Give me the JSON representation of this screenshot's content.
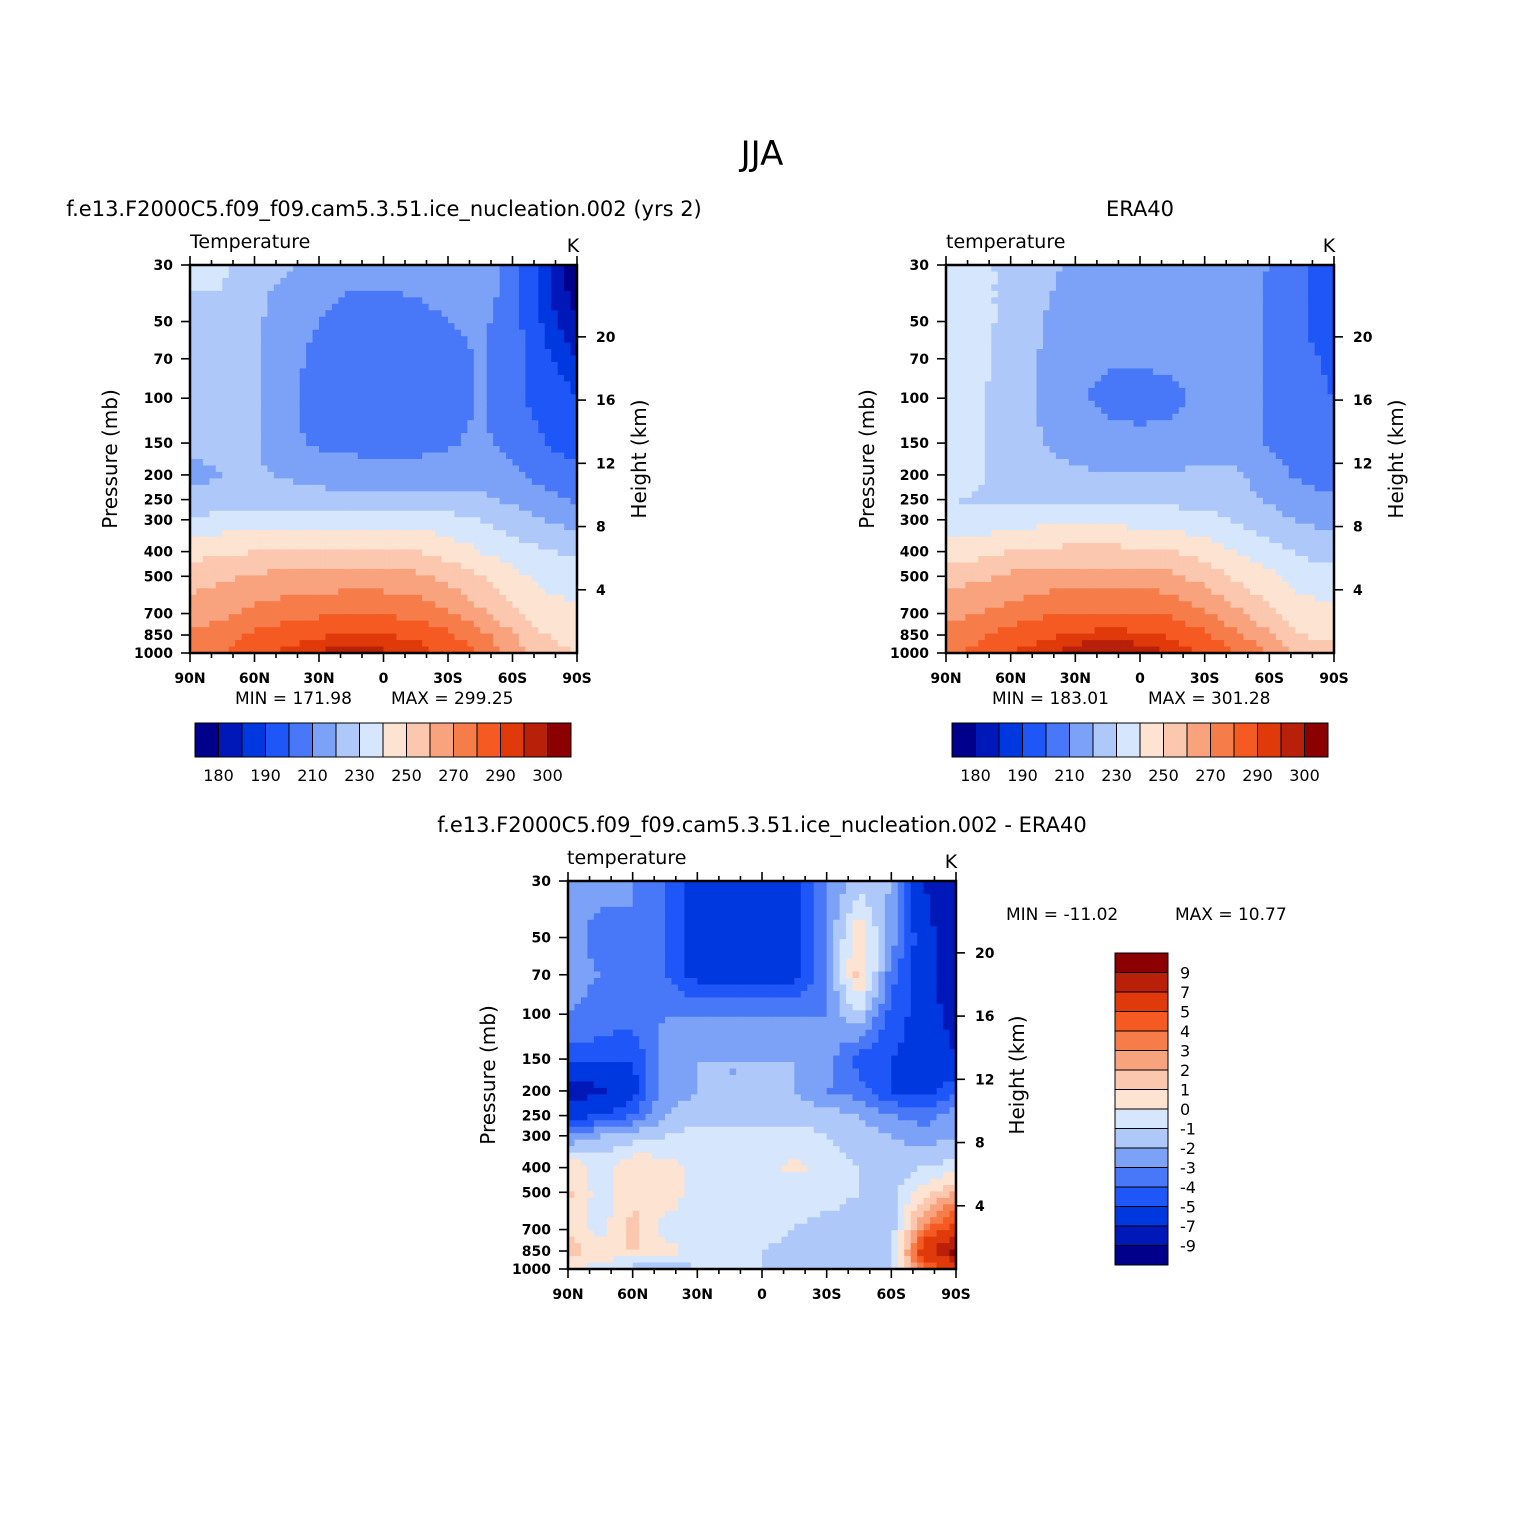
{
  "figure": {
    "title": "JJA"
  },
  "chart_data": [
    {
      "type": "heatmap",
      "title": "f.e13.F2000C5.f09_f09.cam5.3.51.ice_nucleation.002 (yrs 2)",
      "variable": "Temperature",
      "units": "K",
      "ylabel": "Pressure (mb)",
      "ylabel_right": "Height (km)",
      "x_ticks": [
        "90N",
        "60N",
        "30N",
        "0",
        "30S",
        "60S",
        "90S"
      ],
      "y_ticks": [
        30,
        50,
        70,
        100,
        150,
        200,
        250,
        300,
        400,
        500,
        700,
        850,
        1000
      ],
      "height_ticks": [
        20,
        16,
        12,
        8,
        4
      ],
      "min_label": "MIN =  171.98",
      "max_label": "MAX =  299.25",
      "levels": [
        180,
        185,
        190,
        200,
        210,
        220,
        230,
        240,
        250,
        260,
        270,
        280,
        290,
        295,
        300
      ],
      "colorbar_labels": [
        "180",
        "190",
        "210",
        "230",
        "250",
        "270",
        "290",
        "300"
      ],
      "lat_grid": [
        90,
        75,
        60,
        45,
        30,
        15,
        0,
        -15,
        -30,
        -45,
        -60,
        -75,
        -90
      ],
      "p_grid": [
        30,
        50,
        70,
        100,
        150,
        200,
        250,
        300,
        400,
        500,
        700,
        850,
        1000
      ],
      "values": [
        [
          232,
          232,
          222,
          221,
          215,
          212,
          213,
          214,
          215,
          218,
          206,
          186,
          175
        ],
        [
          228,
          228,
          222,
          215,
          210,
          207,
          206,
          207,
          210,
          212,
          205,
          188,
          180
        ],
        [
          226,
          226,
          222,
          214,
          207,
          203,
          202,
          203,
          206,
          211,
          204,
          192,
          185
        ],
        [
          224,
          224,
          222,
          213,
          204,
          200,
          200,
          201,
          204,
          211,
          202,
          196,
          190
        ],
        [
          222,
          222,
          221,
          213,
          208,
          207,
          206,
          207,
          209,
          212,
          207,
          200,
          196
        ],
        [
          218,
          220,
          221,
          219,
          216,
          215,
          214,
          214,
          215,
          216,
          212,
          206,
          202
        ],
        [
          222,
          223,
          224,
          224,
          224,
          223,
          222,
          223,
          223,
          222,
          218,
          213,
          209
        ],
        [
          232,
          234,
          236,
          236,
          236,
          236,
          236,
          236,
          234,
          230,
          225,
          220,
          216
        ],
        [
          246,
          248,
          250,
          251,
          252,
          252,
          252,
          250,
          246,
          240,
          235,
          231,
          228
        ],
        [
          256,
          258,
          261,
          263,
          264,
          264,
          264,
          262,
          257,
          250,
          243,
          237,
          236
        ],
        [
          264,
          268,
          273,
          276,
          278,
          279,
          279,
          277,
          271,
          262,
          252,
          244,
          242
        ],
        [
          272,
          276,
          282,
          286,
          289,
          290,
          290,
          288,
          282,
          273,
          262,
          250,
          248
        ],
        [
          274,
          280,
          287,
          292,
          296,
          297,
          296,
          294,
          288,
          280,
          265,
          252,
          250
        ]
      ]
    },
    {
      "type": "heatmap",
      "title": "ERA40",
      "variable": "temperature",
      "units": "K",
      "ylabel": "Pressure (mb)",
      "ylabel_right": "Height (km)",
      "x_ticks": [
        "90N",
        "60N",
        "30N",
        "0",
        "30S",
        "60S",
        "90S"
      ],
      "y_ticks": [
        30,
        50,
        70,
        100,
        150,
        200,
        250,
        300,
        400,
        500,
        700,
        850,
        1000
      ],
      "height_ticks": [
        20,
        16,
        12,
        8,
        4
      ],
      "min_label": "MIN =  183.01",
      "max_label": "MAX =  301.28",
      "levels": [
        180,
        185,
        190,
        200,
        210,
        220,
        230,
        240,
        250,
        260,
        270,
        280,
        290,
        295,
        300
      ],
      "colorbar_labels": [
        "180",
        "190",
        "210",
        "230",
        "250",
        "270",
        "290",
        "300"
      ],
      "lat_grid": [
        90,
        75,
        60,
        45,
        30,
        15,
        0,
        -15,
        -30,
        -45,
        -60,
        -75,
        -90
      ],
      "p_grid": [
        30,
        50,
        70,
        100,
        150,
        200,
        250,
        300,
        400,
        500,
        700,
        850,
        1000
      ],
      "values": [
        [
          238,
          232,
          228,
          222,
          219,
          218,
          218,
          219,
          220,
          220,
          209,
          201,
          192
        ],
        [
          238,
          232,
          228,
          220,
          215,
          213,
          213,
          214,
          216,
          219,
          208,
          201,
          195
        ],
        [
          236,
          232,
          227,
          219,
          213,
          211,
          211,
          212,
          214,
          218,
          207,
          202,
          198
        ],
        [
          235,
          231,
          226,
          218,
          211,
          208,
          207,
          208,
          212,
          217,
          207,
          203,
          200
        ],
        [
          236,
          231,
          226,
          220,
          214,
          213,
          212,
          213,
          215,
          217,
          209,
          205,
          202
        ],
        [
          238,
          231,
          227,
          225,
          222,
          221,
          220,
          221,
          222,
          221,
          214,
          208,
          206
        ],
        [
          230,
          229,
          229,
          229,
          228,
          228,
          227,
          227,
          227,
          225,
          219,
          214,
          211
        ],
        [
          234,
          234,
          236,
          237,
          237,
          237,
          236,
          235,
          233,
          229,
          223,
          219,
          216
        ],
        [
          244,
          246,
          250,
          252,
          253,
          253,
          252,
          250,
          246,
          240,
          234,
          228,
          226
        ],
        [
          256,
          258,
          262,
          264,
          265,
          265,
          265,
          262,
          256,
          248,
          242,
          236,
          234
        ],
        [
          266,
          270,
          274,
          278,
          280,
          281,
          281,
          278,
          271,
          262,
          252,
          244,
          242
        ],
        [
          274,
          278,
          284,
          288,
          292,
          293,
          292,
          289,
          282,
          272,
          262,
          250,
          248
        ],
        [
          278,
          283,
          290,
          294,
          298,
          300,
          298,
          294,
          288,
          280,
          268,
          254,
          252
        ]
      ]
    },
    {
      "type": "heatmap",
      "title": "f.e13.F2000C5.f09_f09.cam5.3.51.ice_nucleation.002 - ERA40",
      "variable": "temperature",
      "units": "K",
      "ylabel": "Pressure (mb)",
      "ylabel_right": "Height (km)",
      "x_ticks": [
        "90N",
        "60N",
        "30N",
        "0",
        "30S",
        "60S",
        "90S"
      ],
      "y_ticks": [
        30,
        50,
        70,
        100,
        150,
        200,
        250,
        300,
        400,
        500,
        700,
        850,
        1000
      ],
      "height_ticks": [
        20,
        16,
        12,
        8,
        4
      ],
      "min_label": "MIN = -11.02",
      "max_label": "MAX =   10.77",
      "levels": [
        -9,
        -7,
        -5,
        -4,
        -3,
        -2,
        -1,
        0,
        1,
        2,
        3,
        4,
        5,
        7,
        9
      ],
      "colorbar_labels": [
        "9",
        "7",
        "5",
        "4",
        "3",
        "2",
        "1",
        "0",
        "-1",
        "-2",
        "-3",
        "-4",
        "-5",
        "-7",
        "-9"
      ],
      "lat_grid": [
        90,
        75,
        60,
        45,
        30,
        15,
        0,
        -15,
        -30,
        -45,
        -60,
        -75,
        -90
      ],
      "p_grid": [
        30,
        50,
        70,
        100,
        150,
        200,
        250,
        300,
        400,
        500,
        700,
        850,
        1000
      ],
      "values": [
        [
          -2.5,
          -2.5,
          -3.0,
          -4.0,
          -5.5,
          -5.5,
          -5.5,
          -5.5,
          -3.0,
          -1.5,
          -2.0,
          -7.0,
          -9.0
        ],
        [
          -2.5,
          -3.5,
          -3.0,
          -4.0,
          -5.5,
          -5.5,
          -5.0,
          -5.5,
          -3.0,
          1.0,
          -2.5,
          -6.0,
          -9.0
        ],
        [
          -2.5,
          -3.0,
          -3.0,
          -4.0,
          -5.5,
          -5.5,
          -5.5,
          -5.5,
          -3.0,
          1.5,
          -3.5,
          -6.0,
          -9.0
        ],
        [
          -3.0,
          -3.5,
          -3.5,
          -3.0,
          -3.0,
          -3.0,
          -3.0,
          -3.0,
          -3.0,
          -1.0,
          -4.5,
          -5.5,
          -8.0
        ],
        [
          -4.5,
          -4.5,
          -5.0,
          -2.5,
          -2.0,
          -2.0,
          -2.0,
          -2.0,
          -2.5,
          -4.5,
          -5.0,
          -5.5,
          -7.0
        ],
        [
          -8.0,
          -7.5,
          -5.5,
          -2.5,
          -2.0,
          -2.0,
          -2.0,
          -2.0,
          -3.0,
          -3.5,
          -5.0,
          -5.5,
          -4.0
        ],
        [
          -5.5,
          -5.0,
          -4.0,
          -2.0,
          -1.5,
          -1.5,
          -1.5,
          -1.5,
          -1.5,
          -2.0,
          -3.0,
          -3.5,
          -2.5
        ],
        [
          -3.0,
          -2.0,
          -1.5,
          -1.0,
          -0.5,
          -0.5,
          -0.5,
          -0.5,
          -1.0,
          -1.5,
          -2.0,
          -2.5,
          -2.0
        ],
        [
          1.0,
          -0.5,
          1.0,
          0.5,
          -0.5,
          -0.5,
          -0.5,
          0.3,
          -0.5,
          -1.0,
          -1.5,
          -1.0,
          -0.5
        ],
        [
          1.2,
          -0.5,
          0.6,
          0.8,
          -0.5,
          -0.5,
          -0.5,
          -0.5,
          -0.5,
          -1.0,
          -1.5,
          0.5,
          2.0
        ],
        [
          1.0,
          -0.5,
          1.5,
          -0.5,
          -0.5,
          -0.5,
          -0.5,
          -1.0,
          -1.5,
          -1.5,
          -1.5,
          3.5,
          6.0
        ],
        [
          1.5,
          0.5,
          1.2,
          0.5,
          -0.5,
          -1.0,
          -1.0,
          -1.5,
          -1.5,
          -1.5,
          -1.5,
          6.0,
          10.0
        ],
        [
          0.5,
          -0.5,
          -1.5,
          -2.0,
          -1.0,
          -1.0,
          -1.0,
          -1.0,
          -1.0,
          -1.0,
          -1.0,
          4.0,
          5.0
        ]
      ]
    }
  ],
  "palette": [
    "#00008b",
    "#0018b8",
    "#0038e0",
    "#1e56f8",
    "#4878f8",
    "#7ca2f8",
    "#afc8fa",
    "#d6e6fc",
    "#fde3d1",
    "#fbc7ae",
    "#f8a27e",
    "#f67c4a",
    "#f45a22",
    "#e03a0a",
    "#b8200a",
    "#8b0000"
  ]
}
